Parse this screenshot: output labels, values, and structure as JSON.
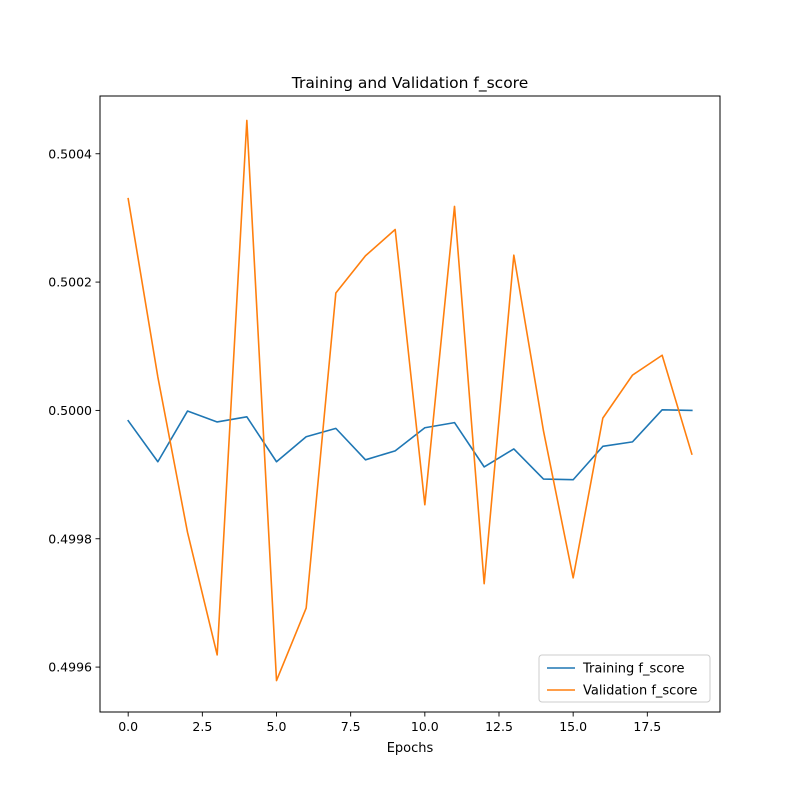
{
  "chart_data": {
    "type": "line",
    "title": "Training and Validation f_score",
    "xlabel": "Epochs",
    "ylabel": "",
    "x": [
      0,
      1,
      2,
      3,
      4,
      5,
      6,
      7,
      8,
      9,
      10,
      11,
      12,
      13,
      14,
      15,
      16,
      17,
      18,
      19
    ],
    "xlim": [
      -0.95,
      19.95
    ],
    "ylim": [
      0.49953,
      0.50049
    ],
    "xticks": [
      0.0,
      2.5,
      5.0,
      7.5,
      10.0,
      12.5,
      15.0,
      17.5
    ],
    "xtick_labels": [
      "0.0",
      "2.5",
      "5.0",
      "7.5",
      "10.0",
      "12.5",
      "15.0",
      "17.5"
    ],
    "yticks": [
      0.4996,
      0.4998,
      0.5,
      0.5002,
      0.5004
    ],
    "ytick_labels": [
      "0.4996",
      "0.4998",
      "0.5000",
      "0.5002",
      "0.5004"
    ],
    "grid": false,
    "legend_position": "bottom-right",
    "series": [
      {
        "name": "Training f_score",
        "color": "#1f77b4",
        "values": [
          0.499984,
          0.49992,
          0.499999,
          0.499982,
          0.49999,
          0.49992,
          0.499959,
          0.499972,
          0.499923,
          0.499937,
          0.499973,
          0.499981,
          0.499912,
          0.49994,
          0.499893,
          0.499892,
          0.499944,
          0.499951,
          0.500001,
          0.5
        ]
      },
      {
        "name": "Validation f_score",
        "color": "#ff7f0e",
        "values": [
          0.50033,
          0.500052,
          0.49981,
          0.499619,
          0.500452,
          0.499579,
          0.499692,
          0.500183,
          0.500241,
          0.500282,
          0.499853,
          0.500318,
          0.49973,
          0.500242,
          0.499968,
          0.499739,
          0.499988,
          0.500055,
          0.500086,
          0.499932
        ]
      }
    ]
  }
}
